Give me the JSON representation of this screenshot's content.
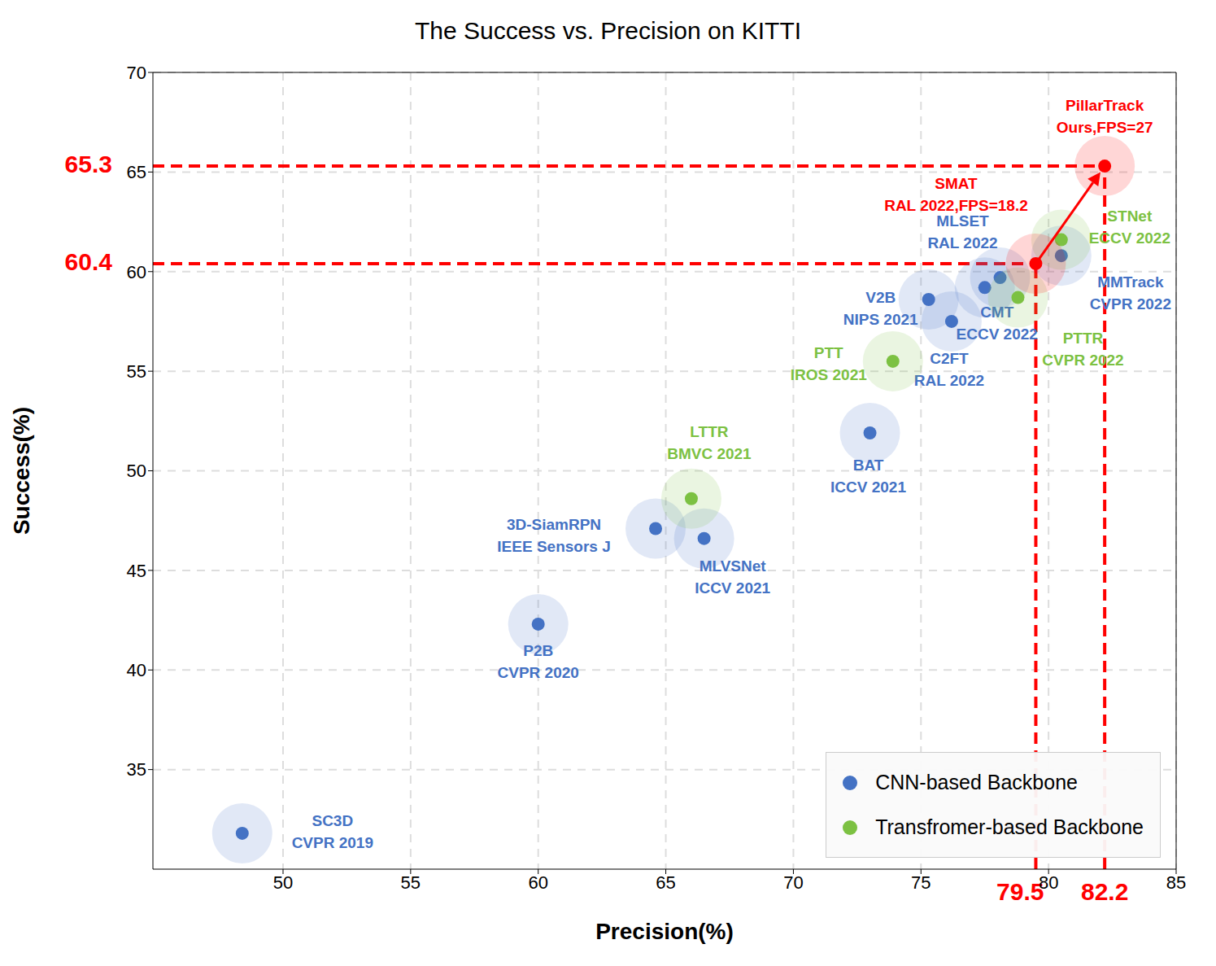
{
  "chart_data": {
    "type": "scatter",
    "title": "The Success vs. Precision on KITTI",
    "x_label": "Precision(%)",
    "y_label": "Success(%)",
    "xlim": [
      44.9,
      85
    ],
    "xticks": [
      50,
      55,
      60,
      65,
      70,
      75,
      80,
      85
    ],
    "ylim": [
      30,
      70
    ],
    "yticks": [
      35,
      40,
      45,
      50,
      55,
      60,
      65,
      70
    ],
    "grid": true,
    "legend": "lower right",
    "series": [
      {
        "name": "CNN-based Backbone",
        "color": "#4472c4",
        "points": [
          {
            "name": "SC3D",
            "venue": "CVPR 2019",
            "x": 48.4,
            "y": 31.8
          },
          {
            "name": "P2B",
            "venue": "CVPR 2020",
            "x": 60.0,
            "y": 42.3
          },
          {
            "name": "3D-SiamRPN",
            "venue": "IEEE Sensors J",
            "x": 64.6,
            "y": 47.1
          },
          {
            "name": "MLVSNet",
            "venue": "ICCV 2021",
            "x": 66.5,
            "y": 46.6
          },
          {
            "name": "BAT",
            "venue": "ICCV 2021",
            "x": 73.0,
            "y": 51.9
          },
          {
            "name": "V2B",
            "venue": "NIPS 2021",
            "x": 75.3,
            "y": 58.6
          },
          {
            "name": "C2FT",
            "venue": "RAL 2022",
            "x": 76.2,
            "y": 57.5
          },
          {
            "name": "CMT",
            "venue": "ECCV 2022",
            "x": 77.5,
            "y": 59.2
          },
          {
            "name": "MLSET",
            "venue": "RAL 2022",
            "x": 78.1,
            "y": 59.7
          },
          {
            "name": "MMTrack",
            "venue": "CVPR 2022",
            "x": 80.5,
            "y": 60.8
          }
        ]
      },
      {
        "name": "Transfromer-based Backbone",
        "color": "#7cc142",
        "points": [
          {
            "name": "LTTR",
            "venue": "BMVC 2021",
            "x": 66.0,
            "y": 48.6
          },
          {
            "name": "PTT",
            "venue": "IROS 2021",
            "x": 73.9,
            "y": 55.5
          },
          {
            "name": "PTTR",
            "venue": "CVPR 2022",
            "x": 78.8,
            "y": 58.7
          },
          {
            "name": "STNet",
            "venue": "ECCV 2022",
            "x": 80.5,
            "y": 61.6
          }
        ]
      },
      {
        "color": "#ff0000",
        "line_style": "arrow",
        "points": [
          {
            "name": "SMAT",
            "venue": "RAL 2022,FPS=18.2",
            "x": 79.5,
            "y": 60.4
          },
          {
            "name": "PillarTrack",
            "venue": "Ours,FPS=27",
            "x": 82.2,
            "y": 65.3
          }
        ]
      }
    ],
    "guides": [
      {
        "x": 79.5,
        "y": 60.4
      },
      {
        "x": 82.2,
        "y": 65.3
      }
    ]
  }
}
